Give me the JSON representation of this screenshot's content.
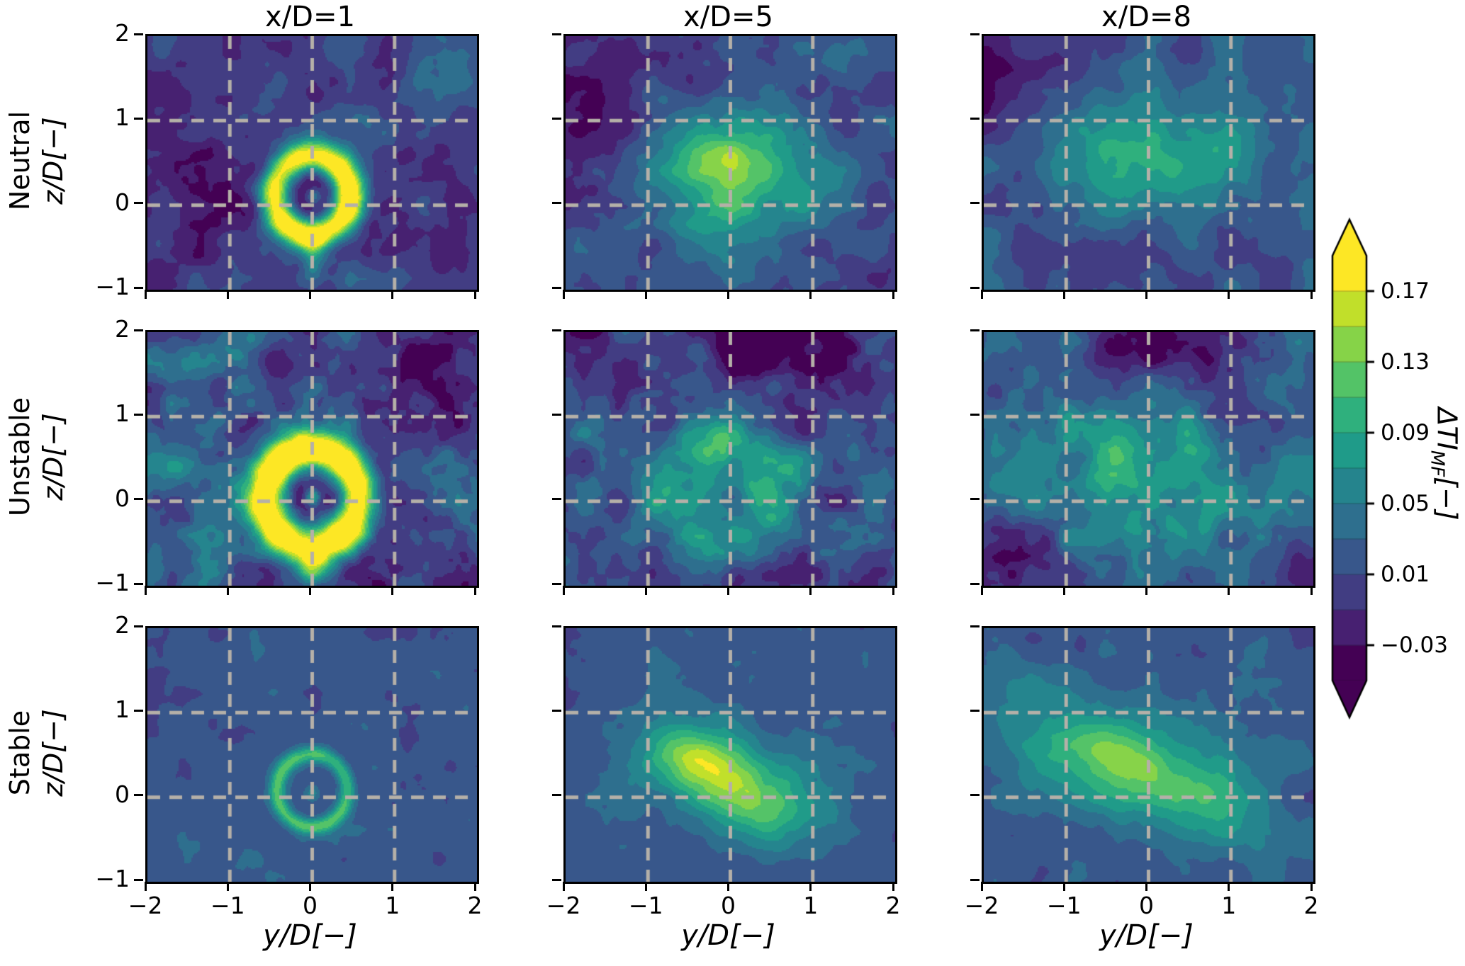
{
  "figure": {
    "col_titles": [
      "x/D=1",
      "x/D=5",
      "x/D=8"
    ],
    "row_labels": [
      {
        "stability": "Neutral",
        "axis": "z/D[−]"
      },
      {
        "stability": "Unstable",
        "axis": "z/D[−]"
      },
      {
        "stability": "Stable",
        "axis": "z/D[−]"
      }
    ],
    "x_axis_label": "y/D[−]",
    "x_ticks": [
      "−2",
      "−1",
      "0",
      "1",
      "2"
    ],
    "y_ticks": [
      "2",
      "1",
      "0",
      "−1"
    ],
    "colorbar": {
      "ticks": [
        "0.17",
        "0.13",
        "0.09",
        "0.05",
        "0.01",
        "−0.03"
      ],
      "label_main": "ΔTI",
      "label_sub": "MF",
      "label_unit": "[−]"
    }
  },
  "chart_data": {
    "type": "heatmap",
    "subtype": "filled-contour",
    "layout": {
      "rows": 3,
      "cols": 3
    },
    "row_conditions": [
      "Neutral",
      "Unstable",
      "Stable"
    ],
    "col_distances_xD": [
      1,
      5,
      8
    ],
    "x": {
      "label": "y/D[−]",
      "range": [
        -2,
        2
      ],
      "ticks": [
        -2,
        -1,
        0,
        1,
        2
      ]
    },
    "y": {
      "label": "z/D[−]",
      "range": [
        -1,
        2
      ],
      "ticks": [
        2,
        1,
        0,
        -1
      ]
    },
    "grid": {
      "x_lines": [
        -1,
        0,
        1
      ],
      "y_lines": [
        0,
        1
      ],
      "style": "dashed",
      "color": "#b5b0a8"
    },
    "colormap": "viridis",
    "colormap_stops": [
      "#440154",
      "#482878",
      "#3e4989",
      "#31688e",
      "#26828e",
      "#1f9e89",
      "#35b779",
      "#6dcd59",
      "#b4de2c",
      "#fde725"
    ],
    "colorbar": {
      "label": "ΔTI_MF[−]",
      "ticks": [
        0.17,
        0.13,
        0.09,
        0.05,
        0.01,
        -0.03
      ],
      "vmin": -0.05,
      "vmax": 0.19,
      "level_step": 0.02,
      "extend": "both"
    },
    "panels": [
      {
        "condition": "Neutral",
        "xD": 1,
        "base": 0.0,
        "noise": {
          "amp": 0.022,
          "freq": 2.2,
          "seed": 11
        },
        "features": [
          {
            "type": "blob",
            "cx": -1.5,
            "cy": 0.6,
            "rx": 0.7,
            "ry": 1.0,
            "angle": 0,
            "amp": -0.022
          },
          {
            "type": "blob",
            "cx": 1.6,
            "cy": 1.4,
            "rx": 0.6,
            "ry": 0.7,
            "angle": 0,
            "amp": 0.02
          },
          {
            "type": "ring",
            "cx": 0.0,
            "cy": 0.12,
            "r": 0.46,
            "w": 0.13,
            "amp": 0.21
          },
          {
            "type": "blob",
            "cx": 0.0,
            "cy": 0.12,
            "rx": 0.2,
            "ry": 0.2,
            "angle": 0,
            "amp": -0.035
          },
          {
            "type": "blob",
            "cx": 0.02,
            "cy": 0.1,
            "rx": 0.07,
            "ry": 0.07,
            "angle": 0,
            "amp": 0.09
          },
          {
            "type": "stem",
            "x": 0.0,
            "z0": -1.05,
            "z1": -0.25,
            "w": 0.1,
            "amp": 0.055
          }
        ]
      },
      {
        "condition": "Neutral",
        "xD": 5,
        "base": 0.015,
        "noise": {
          "amp": 0.02,
          "freq": 2.2,
          "seed": 22
        },
        "features": [
          {
            "type": "blob",
            "cx": -1.7,
            "cy": 1.3,
            "rx": 0.7,
            "ry": 0.9,
            "angle": 0,
            "amp": -0.04
          },
          {
            "type": "blob",
            "cx": 0.0,
            "cy": 0.3,
            "rx": 0.8,
            "ry": 0.55,
            "angle": 0,
            "amp": 0.1
          },
          {
            "type": "blob",
            "cx": -0.1,
            "cy": 0.55,
            "rx": 0.4,
            "ry": 0.25,
            "angle": 0,
            "amp": 0.035
          },
          {
            "type": "blob",
            "cx": 1.8,
            "cy": -0.8,
            "rx": 0.5,
            "ry": 0.4,
            "angle": 0,
            "amp": -0.02
          }
        ]
      },
      {
        "condition": "Neutral",
        "xD": 8,
        "base": 0.02,
        "noise": {
          "amp": 0.018,
          "freq": 2.0,
          "seed": 33
        },
        "features": [
          {
            "type": "blob",
            "cx": -1.8,
            "cy": 1.6,
            "rx": 0.7,
            "ry": 0.7,
            "angle": 0,
            "amp": -0.045
          },
          {
            "type": "blob",
            "cx": 0.05,
            "cy": 0.6,
            "rx": 0.9,
            "ry": 0.5,
            "angle": 0,
            "amp": 0.075
          },
          {
            "type": "blob",
            "cx": -0.3,
            "cy": -0.75,
            "rx": 0.8,
            "ry": 0.35,
            "angle": 0,
            "amp": -0.025
          }
        ]
      },
      {
        "condition": "Unstable",
        "xD": 1,
        "base": 0.012,
        "noise": {
          "amp": 0.034,
          "freq": 2.4,
          "seed": 44
        },
        "features": [
          {
            "type": "ring",
            "cx": 0.0,
            "cy": 0.05,
            "r": 0.56,
            "w": 0.16,
            "amp": 0.22
          },
          {
            "type": "blob",
            "cx": 0.0,
            "cy": 0.05,
            "rx": 0.3,
            "ry": 0.3,
            "angle": 0,
            "amp": -0.05
          },
          {
            "type": "blob",
            "cx": 0.0,
            "cy": 0.05,
            "rx": 0.07,
            "ry": 0.07,
            "angle": 0,
            "amp": 0.1
          },
          {
            "type": "stem",
            "x": 0.0,
            "z0": -1.05,
            "z1": -0.5,
            "w": 0.15,
            "amp": 0.12
          },
          {
            "type": "blob",
            "cx": 1.6,
            "cy": 1.7,
            "rx": 0.7,
            "ry": 0.5,
            "angle": 0,
            "amp": -0.04
          },
          {
            "type": "blob",
            "cx": -1.7,
            "cy": 0.1,
            "rx": 0.5,
            "ry": 0.6,
            "angle": 0,
            "amp": 0.025
          }
        ]
      },
      {
        "condition": "Unstable",
        "xD": 5,
        "base": 0.022,
        "noise": {
          "amp": 0.03,
          "freq": 2.3,
          "seed": 55
        },
        "features": [
          {
            "type": "ring",
            "cx": 0.0,
            "cy": 0.05,
            "r": 0.55,
            "w": 0.3,
            "amp": 0.07
          },
          {
            "type": "blob",
            "cx": -0.1,
            "cy": 0.55,
            "rx": 0.45,
            "ry": 0.3,
            "angle": 0,
            "amp": 0.035
          },
          {
            "type": "blob",
            "cx": 0.4,
            "cy": 1.75,
            "rx": 1.0,
            "ry": 0.55,
            "angle": 0,
            "amp": -0.055
          },
          {
            "type": "blob",
            "cx": -1.8,
            "cy": 1.8,
            "rx": 0.6,
            "ry": 0.5,
            "angle": 0,
            "amp": -0.03
          },
          {
            "type": "blob",
            "cx": 0.2,
            "cy": -0.95,
            "rx": 0.6,
            "ry": 0.3,
            "angle": 0,
            "amp": -0.03
          }
        ]
      },
      {
        "condition": "Unstable",
        "xD": 8,
        "base": 0.025,
        "noise": {
          "amp": 0.028,
          "freq": 2.2,
          "seed": 66
        },
        "features": [
          {
            "type": "blob",
            "cx": 0.1,
            "cy": 0.3,
            "rx": 1.1,
            "ry": 0.65,
            "angle": 0,
            "amp": 0.05
          },
          {
            "type": "blob",
            "cx": -0.4,
            "cy": 0.55,
            "rx": 0.5,
            "ry": 0.35,
            "angle": 0,
            "amp": 0.02
          },
          {
            "type": "blob",
            "cx": 0.2,
            "cy": 1.85,
            "rx": 0.9,
            "ry": 0.5,
            "angle": 0,
            "amp": -0.055
          },
          {
            "type": "blob",
            "cx": -1.75,
            "cy": -0.75,
            "rx": 0.5,
            "ry": 0.45,
            "angle": 0,
            "amp": -0.04
          },
          {
            "type": "blob",
            "cx": 1.6,
            "cy": -0.9,
            "rx": 0.6,
            "ry": 0.35,
            "angle": 0,
            "amp": -0.035
          }
        ]
      },
      {
        "condition": "Stable",
        "xD": 1,
        "base": 0.018,
        "noise": {
          "amp": 0.01,
          "freq": 2.6,
          "seed": 77
        },
        "features": [
          {
            "type": "ring",
            "cx": 0.0,
            "cy": 0.08,
            "r": 0.43,
            "w": 0.07,
            "amp": 0.095
          },
          {
            "type": "blob",
            "cx": 0.0,
            "cy": 0.05,
            "rx": 0.07,
            "ry": 0.07,
            "angle": 0,
            "amp": 0.05
          },
          {
            "type": "blob",
            "cx": -0.2,
            "cy": -0.8,
            "rx": 0.8,
            "ry": 0.3,
            "angle": 0,
            "amp": 0.008
          }
        ]
      },
      {
        "condition": "Stable",
        "xD": 5,
        "base": 0.018,
        "noise": {
          "amp": 0.012,
          "freq": 2.4,
          "seed": 88
        },
        "features": [
          {
            "type": "blob",
            "cx": -0.15,
            "cy": 0.28,
            "rx": 0.75,
            "ry": 0.4,
            "angle": -25,
            "amp": 0.11
          },
          {
            "type": "blob",
            "cx": -0.4,
            "cy": 0.45,
            "rx": 0.32,
            "ry": 0.18,
            "angle": -25,
            "amp": 0.04
          },
          {
            "type": "blob",
            "cx": 0.55,
            "cy": -0.15,
            "rx": 0.45,
            "ry": 0.28,
            "angle": -25,
            "amp": 0.04
          }
        ]
      },
      {
        "condition": "Stable",
        "xD": 8,
        "base": 0.02,
        "noise": {
          "amp": 0.012,
          "freq": 2.2,
          "seed": 99
        },
        "features": [
          {
            "type": "blob",
            "cx": -0.3,
            "cy": 0.4,
            "rx": 1.0,
            "ry": 0.45,
            "angle": -20,
            "amp": 0.095
          },
          {
            "type": "blob",
            "cx": -0.55,
            "cy": 0.55,
            "rx": 0.4,
            "ry": 0.2,
            "angle": -20,
            "amp": 0.03
          },
          {
            "type": "blob",
            "cx": 0.6,
            "cy": 0.0,
            "rx": 0.55,
            "ry": 0.3,
            "angle": -20,
            "amp": 0.035
          }
        ]
      }
    ]
  }
}
